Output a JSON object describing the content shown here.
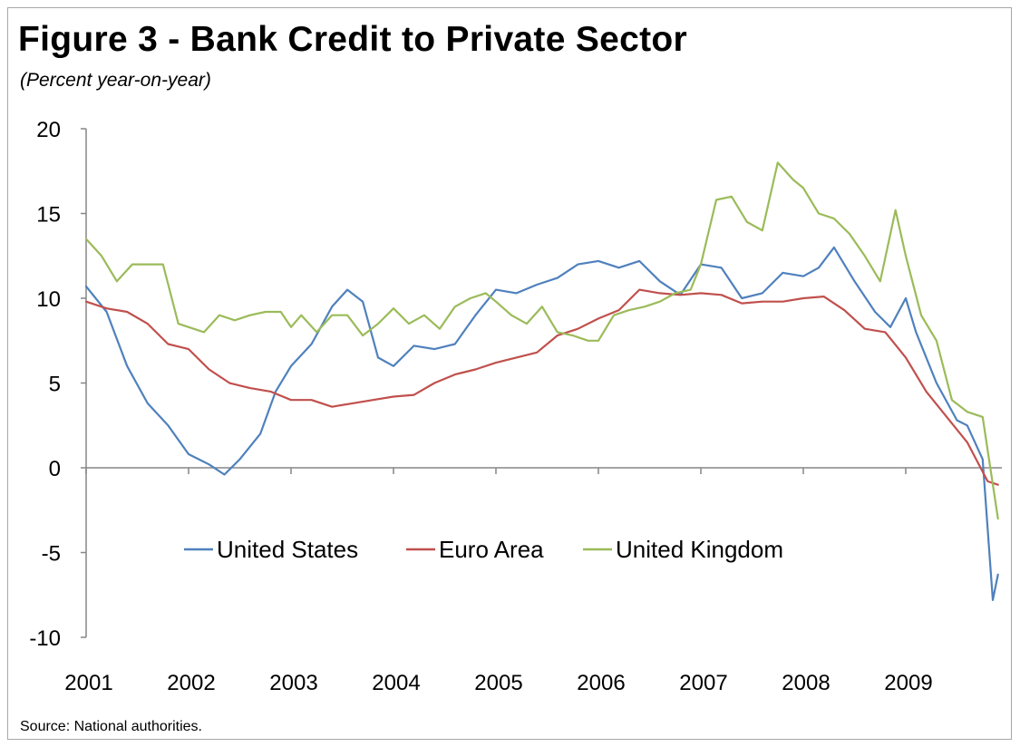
{
  "chart_data": {
    "type": "line",
    "title": "Figure 3 - Bank Credit to Private Sector",
    "subtitle": "(Percent year-on-year)",
    "source": "Source: National authorities.",
    "xlabel": "",
    "ylabel": "",
    "ylim": [
      -10,
      20
    ],
    "yticks": [
      -10,
      -5,
      0,
      5,
      10,
      15,
      20
    ],
    "xlim": [
      2001.0,
      2009.9
    ],
    "xticks": [
      "2001",
      "2002",
      "2003",
      "2004",
      "2005",
      "2006",
      "2007",
      "2008",
      "2009"
    ],
    "grid": false,
    "legend_position": "center",
    "colors": {
      "United States": "#4f81bd",
      "Euro Area": "#c0504d",
      "United Kingdom": "#9bbb59"
    },
    "series": [
      {
        "name": "United States",
        "x": [
          2001.0,
          2001.2,
          2001.4,
          2001.6,
          2001.8,
          2002.0,
          2002.2,
          2002.35,
          2002.5,
          2002.7,
          2002.85,
          2003.0,
          2003.2,
          2003.4,
          2003.55,
          2003.7,
          2003.85,
          2004.0,
          2004.2,
          2004.4,
          2004.6,
          2004.8,
          2005.0,
          2005.2,
          2005.4,
          2005.6,
          2005.8,
          2006.0,
          2006.2,
          2006.4,
          2006.6,
          2006.8,
          2007.0,
          2007.2,
          2007.4,
          2007.6,
          2007.8,
          2008.0,
          2008.15,
          2008.3,
          2008.5,
          2008.7,
          2008.85,
          2009.0,
          2009.1,
          2009.3,
          2009.5,
          2009.6,
          2009.75,
          2009.85,
          2009.9
        ],
        "values": [
          10.7,
          9.2,
          6.0,
          3.8,
          2.5,
          0.8,
          0.2,
          -0.4,
          0.5,
          2.0,
          4.5,
          6.0,
          7.3,
          9.5,
          10.5,
          9.8,
          6.5,
          6.0,
          7.2,
          7.0,
          7.3,
          9.0,
          10.5,
          10.3,
          10.8,
          11.2,
          12.0,
          12.2,
          11.8,
          12.2,
          11.0,
          10.2,
          12.0,
          11.8,
          10.0,
          10.3,
          11.5,
          11.3,
          11.8,
          13.0,
          11.0,
          9.2,
          8.3,
          10.0,
          8.0,
          5.0,
          2.8,
          2.5,
          0.5,
          -7.8,
          -6.3
        ]
      },
      {
        "name": "Euro Area",
        "x": [
          2001.0,
          2001.2,
          2001.4,
          2001.6,
          2001.8,
          2002.0,
          2002.2,
          2002.4,
          2002.6,
          2002.8,
          2003.0,
          2003.2,
          2003.4,
          2003.6,
          2003.8,
          2004.0,
          2004.2,
          2004.4,
          2004.6,
          2004.8,
          2005.0,
          2005.2,
          2005.4,
          2005.6,
          2005.8,
          2006.0,
          2006.2,
          2006.4,
          2006.6,
          2006.8,
          2007.0,
          2007.2,
          2007.4,
          2007.6,
          2007.8,
          2008.0,
          2008.2,
          2008.4,
          2008.6,
          2008.8,
          2009.0,
          2009.2,
          2009.4,
          2009.6,
          2009.8,
          2009.9
        ],
        "values": [
          9.8,
          9.4,
          9.2,
          8.5,
          7.3,
          7.0,
          5.8,
          5.0,
          4.7,
          4.5,
          4.0,
          4.0,
          3.6,
          3.8,
          4.0,
          4.2,
          4.3,
          5.0,
          5.5,
          5.8,
          6.2,
          6.5,
          6.8,
          7.8,
          8.2,
          8.8,
          9.3,
          10.5,
          10.3,
          10.2,
          10.3,
          10.2,
          9.7,
          9.8,
          9.8,
          10.0,
          10.1,
          9.3,
          8.2,
          8.0,
          6.5,
          4.5,
          3.0,
          1.5,
          -0.8,
          -1.0
        ]
      },
      {
        "name": "United Kingdom",
        "x": [
          2001.0,
          2001.15,
          2001.3,
          2001.45,
          2001.6,
          2001.75,
          2001.9,
          2002.0,
          2002.15,
          2002.3,
          2002.45,
          2002.6,
          2002.75,
          2002.9,
          2003.0,
          2003.1,
          2003.25,
          2003.4,
          2003.55,
          2003.7,
          2003.85,
          2004.0,
          2004.15,
          2004.3,
          2004.45,
          2004.6,
          2004.75,
          2004.9,
          2005.0,
          2005.15,
          2005.3,
          2005.45,
          2005.6,
          2005.75,
          2005.9,
          2006.0,
          2006.15,
          2006.3,
          2006.45,
          2006.6,
          2006.75,
          2006.9,
          2007.0,
          2007.15,
          2007.3,
          2007.45,
          2007.6,
          2007.75,
          2007.9,
          2008.0,
          2008.15,
          2008.3,
          2008.45,
          2008.6,
          2008.75,
          2008.9,
          2009.0,
          2009.15,
          2009.3,
          2009.45,
          2009.6,
          2009.75,
          2009.9
        ],
        "values": [
          13.5,
          12.5,
          11.0,
          12.0,
          12.0,
          12.0,
          8.5,
          8.3,
          8.0,
          9.0,
          8.7,
          9.0,
          9.2,
          9.2,
          8.3,
          9.0,
          8.0,
          9.0,
          9.0,
          7.8,
          8.5,
          9.4,
          8.5,
          9.0,
          8.2,
          9.5,
          10.0,
          10.3,
          9.8,
          9.0,
          8.5,
          9.5,
          8.0,
          7.8,
          7.5,
          7.5,
          9.0,
          9.3,
          9.5,
          9.8,
          10.3,
          10.5,
          12.0,
          15.8,
          16.0,
          14.5,
          14.0,
          18.0,
          17.0,
          16.5,
          15.0,
          14.7,
          13.8,
          12.5,
          11.0,
          15.2,
          12.5,
          9.0,
          7.5,
          4.0,
          3.3,
          3.0,
          -3.0
        ]
      }
    ]
  }
}
